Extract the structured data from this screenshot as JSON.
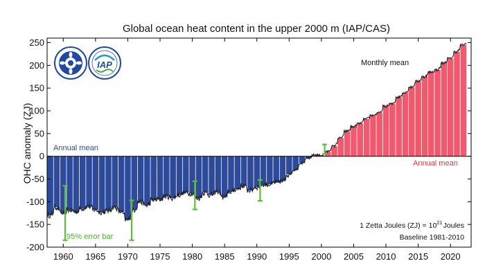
{
  "chart_data": {
    "type": "bar",
    "title": "Global ocean heat content in the upper 2000 m (IAP/CAS)",
    "xlabel": "",
    "ylabel": "OHC anomaly (ZJ)",
    "xlim": [
      1957.5,
      2023.2
    ],
    "ylim": [
      -200,
      260
    ],
    "x_ticks": [
      1960,
      1965,
      1970,
      1975,
      1980,
      1985,
      1990,
      1995,
      2000,
      2005,
      2010,
      2015,
      2020
    ],
    "y_ticks": [
      -200,
      -150,
      -100,
      -50,
      0,
      50,
      100,
      150,
      200,
      250
    ],
    "grid": false,
    "colors": {
      "negative": "#2e4b9b",
      "positive": "#f05a6e",
      "monthly_line": "#222222",
      "error_bar": "#5cbf3a",
      "axis": "#000000"
    },
    "series": [
      {
        "name": "Annual mean",
        "x": [
          1958,
          1959,
          1960,
          1961,
          1962,
          1963,
          1964,
          1965,
          1966,
          1967,
          1968,
          1969,
          1970,
          1971,
          1972,
          1973,
          1974,
          1975,
          1976,
          1977,
          1978,
          1979,
          1980,
          1981,
          1982,
          1983,
          1984,
          1985,
          1986,
          1987,
          1988,
          1989,
          1990,
          1991,
          1992,
          1993,
          1994,
          1995,
          1996,
          1997,
          1998,
          1999,
          2000,
          2001,
          2002,
          2003,
          2004,
          2005,
          2006,
          2007,
          2008,
          2009,
          2010,
          2011,
          2012,
          2013,
          2014,
          2015,
          2016,
          2017,
          2018,
          2019,
          2020,
          2021,
          2022
        ],
        "values": [
          -130,
          -112,
          -125,
          -118,
          -122,
          -115,
          -110,
          -118,
          -123,
          -120,
          -112,
          -122,
          -140,
          -118,
          -100,
          -108,
          -96,
          -95,
          -88,
          -92,
          -85,
          -80,
          -82,
          -92,
          -80,
          -85,
          -78,
          -90,
          -78,
          -72,
          -65,
          -75,
          -68,
          -62,
          -62,
          -58,
          -55,
          -40,
          -30,
          -15,
          -5,
          3,
          2,
          10,
          22,
          40,
          55,
          65,
          72,
          82,
          90,
          95,
          110,
          115,
          130,
          140,
          152,
          165,
          175,
          185,
          190,
          205,
          215,
          230,
          245
        ]
      }
    ],
    "monthly_mean_label": "Monthly mean",
    "annual_mean_label_negative": "Annual mean",
    "annual_mean_label_positive": "Annual mean",
    "error_bars": [
      {
        "x": 1960.3,
        "low": -185,
        "high": -65
      },
      {
        "x": 1970.6,
        "low": -185,
        "high": -97
      },
      {
        "x": 1980.4,
        "low": -117,
        "high": -55
      },
      {
        "x": 1990.5,
        "low": -98,
        "high": -52
      },
      {
        "x": 2000.5,
        "low": 5,
        "high": 26
      }
    ],
    "error_bar_label": "95% error bar",
    "note_line1_prefix": "1 Zetta Joules (ZJ) = 10",
    "note_line1_sup": "21",
    "note_line1_suffix": "Joules",
    "note_line2": "Baseline 1981-2010",
    "logo_left_name": "cas-logo",
    "logo_right_name": "iap-logo",
    "logo_right_text": "IAP"
  }
}
